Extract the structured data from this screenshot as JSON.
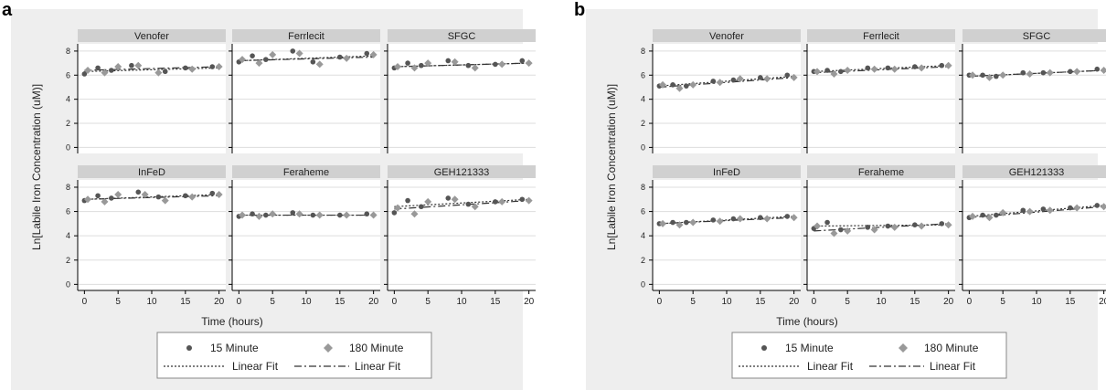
{
  "panels": [
    {
      "letter": "a"
    },
    {
      "letter": "b"
    }
  ],
  "legend": {
    "marker_15": "15 Minute",
    "marker_180": "180 Minute",
    "fit_15": "Linear Fit",
    "fit_180": "Linear Fit"
  },
  "colors": {
    "bg": "#eeeeee",
    "plot": "#ffffff",
    "strip": "#d0d0d0",
    "grid": "#dddddd",
    "marker15": "#555555",
    "marker180": "#999999",
    "line": "#333333"
  },
  "chart_data": [
    {
      "type": "scatter",
      "panel": "a",
      "xlabel": "Time (hours)",
      "ylabel": "Ln[Labile Iron Concentration (uM)]",
      "xlim": [
        -1,
        21
      ],
      "ylim": [
        -0.5,
        8.6
      ],
      "xticks": [
        0,
        5,
        10,
        15,
        20
      ],
      "yticks": [
        0,
        2,
        4,
        6,
        8
      ],
      "facets": [
        {
          "name": "Venofer",
          "s15": [
            [
              0,
              6.1
            ],
            [
              2,
              6.6
            ],
            [
              4,
              6.4
            ],
            [
              7,
              6.8
            ],
            [
              12,
              6.3
            ],
            [
              15,
              6.6
            ],
            [
              19,
              6.7
            ]
          ],
          "s180": [
            [
              0.5,
              6.4
            ],
            [
              3,
              6.2
            ],
            [
              5,
              6.7
            ],
            [
              8,
              6.8
            ],
            [
              11,
              6.2
            ],
            [
              16,
              6.5
            ],
            [
              20,
              6.7
            ]
          ],
          "fit15": [
            6.3,
            6.6
          ],
          "fit180": [
            6.4,
            6.7
          ]
        },
        {
          "name": "Ferrlecit",
          "s15": [
            [
              0,
              7.1
            ],
            [
              2,
              7.6
            ],
            [
              4,
              7.3
            ],
            [
              8,
              8.0
            ],
            [
              11,
              7.1
            ],
            [
              15,
              7.5
            ],
            [
              19,
              7.8
            ]
          ],
          "s180": [
            [
              0.5,
              7.3
            ],
            [
              3,
              7.0
            ],
            [
              5,
              7.7
            ],
            [
              9,
              7.8
            ],
            [
              12,
              6.9
            ],
            [
              16,
              7.4
            ],
            [
              20,
              7.7
            ]
          ],
          "fit15": [
            7.2,
            7.6
          ],
          "fit180": [
            7.2,
            7.5
          ]
        },
        {
          "name": "SFGC",
          "s15": [
            [
              0,
              6.6
            ],
            [
              2,
              7.0
            ],
            [
              4,
              6.8
            ],
            [
              8,
              7.2
            ],
            [
              11,
              6.8
            ],
            [
              15,
              6.9
            ],
            [
              19,
              7.2
            ]
          ],
          "s180": [
            [
              0.5,
              6.7
            ],
            [
              3,
              6.6
            ],
            [
              5,
              7.0
            ],
            [
              9,
              7.1
            ],
            [
              12,
              6.6
            ],
            [
              16,
              6.9
            ],
            [
              20,
              7.0
            ]
          ],
          "fit15": [
            6.7,
            7.0
          ],
          "fit180": [
            6.7,
            7.0
          ]
        },
        {
          "name": "InFeD",
          "s15": [
            [
              0,
              6.9
            ],
            [
              2,
              7.3
            ],
            [
              4,
              7.1
            ],
            [
              8,
              7.6
            ],
            [
              11,
              7.2
            ],
            [
              15,
              7.3
            ],
            [
              19,
              7.5
            ]
          ],
          "s180": [
            [
              0.5,
              7.0
            ],
            [
              3,
              6.8
            ],
            [
              5,
              7.4
            ],
            [
              9,
              7.4
            ],
            [
              12,
              6.9
            ],
            [
              16,
              7.2
            ],
            [
              20,
              7.4
            ]
          ],
          "fit15": [
            7.0,
            7.4
          ],
          "fit180": [
            7.0,
            7.3
          ]
        },
        {
          "name": "Feraheme",
          "s15": [
            [
              0,
              5.6
            ],
            [
              2,
              5.8
            ],
            [
              4,
              5.7
            ],
            [
              8,
              5.9
            ],
            [
              11,
              5.7
            ],
            [
              15,
              5.7
            ],
            [
              19,
              5.8
            ]
          ],
          "s180": [
            [
              0.5,
              5.7
            ],
            [
              3,
              5.6
            ],
            [
              5,
              5.8
            ],
            [
              9,
              5.8
            ],
            [
              12,
              5.7
            ],
            [
              16,
              5.7
            ],
            [
              20,
              5.7
            ]
          ],
          "fit15": [
            5.7,
            5.7
          ],
          "fit180": [
            5.7,
            5.7
          ]
        },
        {
          "name": "GEH121333",
          "s15": [
            [
              0,
              5.9
            ],
            [
              2,
              6.9
            ],
            [
              4,
              6.4
            ],
            [
              8,
              7.1
            ],
            [
              11,
              6.6
            ],
            [
              15,
              6.8
            ],
            [
              19,
              7.0
            ]
          ],
          "s180": [
            [
              0.5,
              6.3
            ],
            [
              3,
              5.8
            ],
            [
              5,
              6.8
            ],
            [
              9,
              7.0
            ],
            [
              12,
              6.4
            ],
            [
              16,
              6.8
            ],
            [
              20,
              6.9
            ]
          ],
          "fit15": [
            6.4,
            7.0
          ],
          "fit180": [
            6.2,
            6.9
          ]
        }
      ]
    },
    {
      "type": "scatter",
      "panel": "b",
      "xlabel": "Time (hours)",
      "ylabel": "Ln[Labile Iron Concentration (uM)]",
      "xlim": [
        -1,
        21
      ],
      "ylim": [
        -0.5,
        8.6
      ],
      "xticks": [
        0,
        5,
        10,
        15,
        20
      ],
      "yticks": [
        0,
        2,
        4,
        6,
        8
      ],
      "facets": [
        {
          "name": "Venofer",
          "s15": [
            [
              0,
              5.1
            ],
            [
              2,
              5.2
            ],
            [
              4,
              5.1
            ],
            [
              8,
              5.5
            ],
            [
              11,
              5.6
            ],
            [
              15,
              5.8
            ],
            [
              19,
              6.0
            ]
          ],
          "s180": [
            [
              0.5,
              5.2
            ],
            [
              3,
              4.9
            ],
            [
              5,
              5.2
            ],
            [
              9,
              5.4
            ],
            [
              12,
              5.7
            ],
            [
              16,
              5.7
            ],
            [
              20,
              5.8
            ]
          ],
          "fit15": [
            5.1,
            5.9
          ],
          "fit180": [
            5.0,
            5.8
          ]
        },
        {
          "name": "Ferrlecit",
          "s15": [
            [
              0,
              6.3
            ],
            [
              2,
              6.4
            ],
            [
              4,
              6.3
            ],
            [
              8,
              6.6
            ],
            [
              11,
              6.6
            ],
            [
              15,
              6.7
            ],
            [
              19,
              6.8
            ]
          ],
          "s180": [
            [
              0.5,
              6.3
            ],
            [
              3,
              6.1
            ],
            [
              5,
              6.4
            ],
            [
              9,
              6.5
            ],
            [
              12,
              6.5
            ],
            [
              16,
              6.6
            ],
            [
              20,
              6.8
            ]
          ],
          "fit15": [
            6.3,
            6.8
          ],
          "fit180": [
            6.2,
            6.7
          ]
        },
        {
          "name": "SFGC",
          "s15": [
            [
              0,
              6.0
            ],
            [
              2,
              6.0
            ],
            [
              4,
              5.9
            ],
            [
              8,
              6.2
            ],
            [
              11,
              6.2
            ],
            [
              15,
              6.3
            ],
            [
              19,
              6.5
            ]
          ],
          "s180": [
            [
              0.5,
              6.0
            ],
            [
              3,
              5.8
            ],
            [
              5,
              6.0
            ],
            [
              9,
              6.1
            ],
            [
              12,
              6.2
            ],
            [
              16,
              6.3
            ],
            [
              20,
              6.4
            ]
          ],
          "fit15": [
            5.9,
            6.4
          ],
          "fit180": [
            5.9,
            6.4
          ]
        },
        {
          "name": "InFeD",
          "s15": [
            [
              0,
              5.0
            ],
            [
              2,
              5.1
            ],
            [
              4,
              5.1
            ],
            [
              8,
              5.3
            ],
            [
              11,
              5.4
            ],
            [
              15,
              5.5
            ],
            [
              19,
              5.6
            ]
          ],
          "s180": [
            [
              0.5,
              5.0
            ],
            [
              3,
              4.9
            ],
            [
              5,
              5.1
            ],
            [
              9,
              5.2
            ],
            [
              12,
              5.4
            ],
            [
              16,
              5.4
            ],
            [
              20,
              5.5
            ]
          ],
          "fit15": [
            5.0,
            5.6
          ],
          "fit180": [
            5.0,
            5.5
          ]
        },
        {
          "name": "Feraheme",
          "s15": [
            [
              0,
              4.6
            ],
            [
              2,
              5.1
            ],
            [
              4,
              4.5
            ],
            [
              8,
              4.7
            ],
            [
              11,
              4.8
            ],
            [
              15,
              4.9
            ],
            [
              19,
              5.0
            ]
          ],
          "s180": [
            [
              0.5,
              4.8
            ],
            [
              3,
              4.2
            ],
            [
              5,
              4.4
            ],
            [
              9,
              4.5
            ],
            [
              12,
              4.7
            ],
            [
              16,
              4.8
            ],
            [
              20,
              4.9
            ]
          ],
          "fit15": [
            4.8,
            4.9
          ],
          "fit180": [
            4.4,
            5.0
          ]
        },
        {
          "name": "GEH121333",
          "s15": [
            [
              0,
              5.5
            ],
            [
              2,
              5.7
            ],
            [
              4,
              5.7
            ],
            [
              8,
              6.1
            ],
            [
              11,
              6.2
            ],
            [
              15,
              6.3
            ],
            [
              19,
              6.5
            ]
          ],
          "s180": [
            [
              0.5,
              5.6
            ],
            [
              3,
              5.5
            ],
            [
              5,
              5.9
            ],
            [
              9,
              6.0
            ],
            [
              12,
              6.1
            ],
            [
              16,
              6.3
            ],
            [
              20,
              6.4
            ]
          ],
          "fit15": [
            5.6,
            6.5
          ],
          "fit180": [
            5.5,
            6.4
          ]
        }
      ]
    }
  ]
}
